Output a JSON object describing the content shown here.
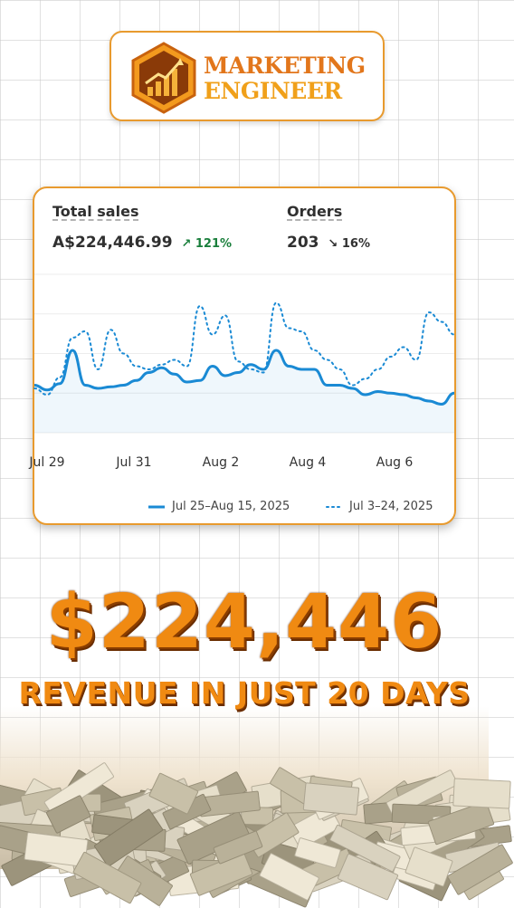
{
  "brand": {
    "line1": "MARKETING",
    "line2": "ENGINEER",
    "primary_color": "#e2761b",
    "secondary_color": "#f0a01a",
    "icon": "growth-chart-hexagon-icon"
  },
  "metrics": {
    "total_sales": {
      "label": "Total sales",
      "value": "A$224,446.99",
      "change": "121%",
      "direction": "up",
      "change_icon": "arrow-up-right-icon"
    },
    "orders": {
      "label": "Orders",
      "value": "203",
      "change": "16%",
      "direction": "down",
      "change_icon": "arrow-down-right-icon"
    }
  },
  "chart_data": {
    "type": "line",
    "x_tick_labels": [
      "Jul 29",
      "Jul 31",
      "Aug 2",
      "Aug 4",
      "Aug 6"
    ],
    "grid": true,
    "legend_position": "bottom",
    "series": [
      {
        "name": "Jul 25–Aug 15, 2025",
        "style": "solid",
        "color": "#1a8ad4",
        "values": [
          30,
          27,
          31,
          52,
          30,
          28,
          29,
          30,
          33,
          38,
          41,
          37,
          32,
          33,
          42,
          36,
          38,
          43,
          40,
          52,
          42,
          40,
          40,
          30,
          30,
          28,
          24,
          26,
          25,
          24,
          22,
          20,
          18,
          25
        ]
      },
      {
        "name": "Jul 3–24, 2025",
        "style": "dotted",
        "color": "#1a8ad4",
        "values": [
          28,
          24,
          35,
          60,
          64,
          40,
          65,
          50,
          42,
          40,
          43,
          46,
          42,
          80,
          62,
          74,
          45,
          40,
          38,
          82,
          66,
          64,
          52,
          46,
          40,
          30,
          34,
          40,
          48,
          54,
          46,
          76,
          70,
          62
        ]
      }
    ]
  },
  "headline": {
    "amount": "$224,446",
    "tagline": "REVENUE IN JUST 20 DAYS",
    "color": "#f08a12"
  }
}
